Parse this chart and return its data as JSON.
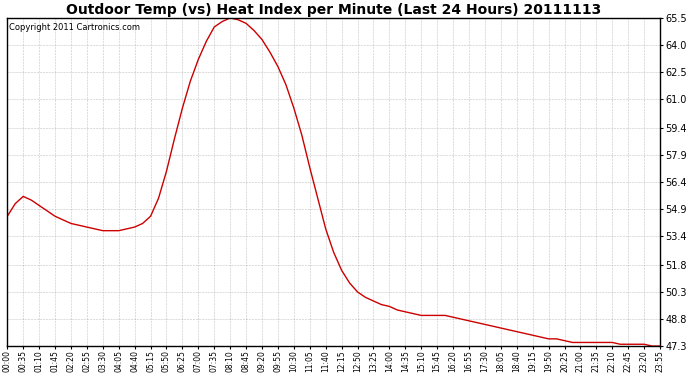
{
  "title": "Outdoor Temp (vs) Heat Index per Minute (Last 24 Hours) 20111113",
  "copyright": "Copyright 2011 Cartronics.com",
  "line_color": "#cc0000",
  "background_color": "#ffffff",
  "grid_color": "#999999",
  "title_fontsize": 10,
  "copyright_fontsize": 6,
  "ymin": 47.3,
  "ymax": 65.5,
  "yticks": [
    65.5,
    64.0,
    62.5,
    61.0,
    59.4,
    57.9,
    56.4,
    54.9,
    53.4,
    51.8,
    50.3,
    48.8,
    47.3
  ],
  "x_tick_labels": [
    "00:00",
    "00:35",
    "01:10",
    "01:45",
    "02:20",
    "02:55",
    "03:30",
    "04:05",
    "04:40",
    "05:15",
    "05:50",
    "06:25",
    "07:00",
    "07:35",
    "08:10",
    "08:45",
    "09:20",
    "09:55",
    "10:30",
    "11:05",
    "11:40",
    "12:15",
    "12:50",
    "13:25",
    "14:00",
    "14:35",
    "15:10",
    "15:45",
    "16:20",
    "16:55",
    "17:30",
    "18:05",
    "18:40",
    "19:15",
    "19:50",
    "20:25",
    "21:00",
    "21:35",
    "22:10",
    "22:45",
    "23:20",
    "23:55"
  ],
  "curve_y": [
    54.5,
    55.2,
    55.6,
    55.4,
    55.1,
    54.8,
    54.5,
    54.3,
    54.1,
    54.0,
    53.9,
    53.8,
    53.7,
    53.7,
    53.7,
    53.8,
    53.9,
    54.1,
    54.5,
    55.5,
    57.0,
    58.8,
    60.5,
    62.0,
    63.2,
    64.2,
    65.0,
    65.3,
    65.5,
    65.4,
    65.2,
    64.8,
    64.3,
    63.6,
    62.8,
    61.8,
    60.5,
    59.0,
    57.2,
    55.5,
    53.8,
    52.5,
    51.5,
    50.8,
    50.3,
    50.0,
    49.8,
    49.6,
    49.5,
    49.3,
    49.2,
    49.1,
    49.0,
    49.0,
    49.0,
    49.0,
    48.9,
    48.8,
    48.7,
    48.6,
    48.5,
    48.4,
    48.3,
    48.2,
    48.1,
    48.0,
    47.9,
    47.8,
    47.7,
    47.7,
    47.6,
    47.5,
    47.5,
    47.5,
    47.5,
    47.5,
    47.5,
    47.4,
    47.4,
    47.4,
    47.4,
    47.3,
    47.3
  ]
}
